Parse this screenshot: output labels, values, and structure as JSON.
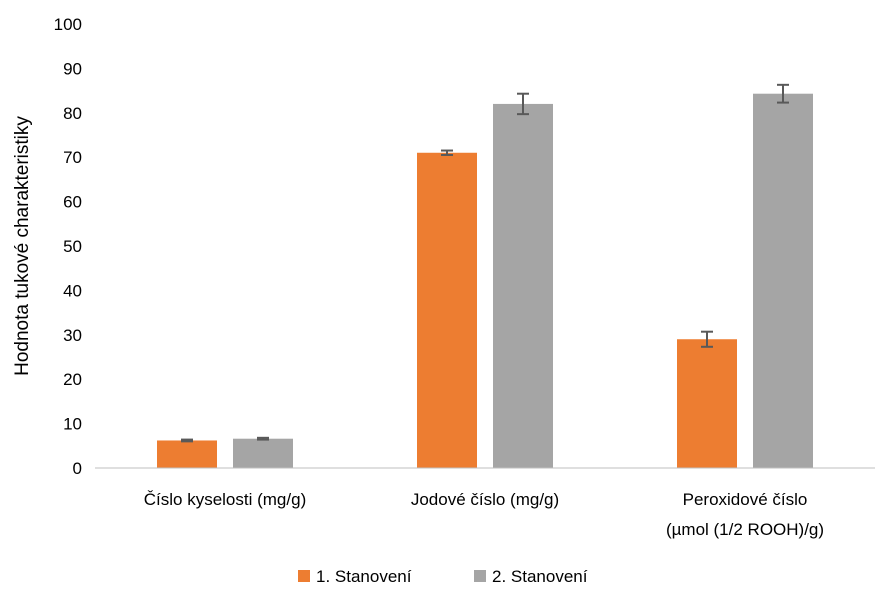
{
  "chart_data": {
    "type": "bar",
    "title": "",
    "xlabel": "",
    "ylabel": "Hodnota tukové charakteristiky",
    "ylim": [
      0,
      100
    ],
    "yticks": [
      "0",
      "10",
      "20",
      "30",
      "40",
      "50",
      "60",
      "70",
      "80",
      "90",
      "100"
    ],
    "categories": [
      [
        "Číslo kyselosti (mg/g)"
      ],
      [
        "Jodové číslo (mg/g)"
      ],
      [
        "Peroxidové číslo",
        "(µmol (1/2 ROOH)/g)"
      ]
    ],
    "series": [
      {
        "name": "1. Stanovení",
        "color": "#ED7D31",
        "values": [
          6.2,
          71.0,
          29.0
        ],
        "errors": [
          0.2,
          0.5,
          1.7
        ]
      },
      {
        "name": "2. Stanovení",
        "color": "#A5A5A5",
        "values": [
          6.6,
          82.0,
          84.3
        ],
        "errors": [
          0.2,
          2.3,
          2.0
        ]
      }
    ],
    "error_bar_color": "#595959",
    "grid": false,
    "legend": "bottom"
  }
}
